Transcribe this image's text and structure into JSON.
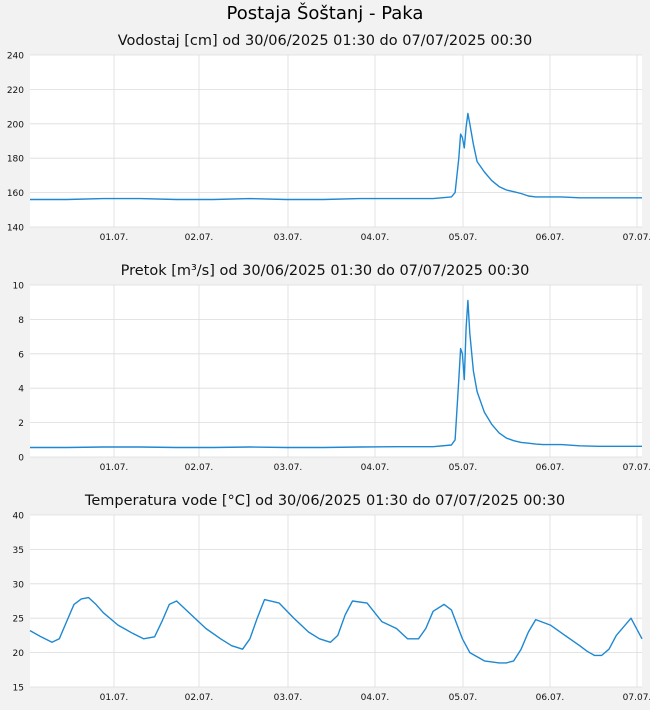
{
  "page_title": "Postaja Šoštanj - Paka",
  "colors": {
    "series": "#1e88d2",
    "background": "#f2f2f2",
    "plot": "#ffffff",
    "grid": "#dcdcdc"
  },
  "chart_data": [
    {
      "type": "line",
      "title": "Vodostaj [cm] od 30/06/2025 01:30 do 07/07/2025 00:30",
      "xlabel": "",
      "ylabel": "",
      "x_ticks": [
        "01.07.",
        "02.07.",
        "03.07.",
        "04.07.",
        "05.07.",
        "06.07.",
        "07.07."
      ],
      "y_ticks": [
        "140",
        "160",
        "180",
        "200",
        "220",
        "240"
      ],
      "xlim": [
        0,
        167
      ],
      "ylim": [
        140,
        240
      ],
      "grid": true,
      "x_unit": "hours since 30/06/2025 01:30",
      "series": [
        {
          "x": [
            0,
            10,
            20,
            30,
            40,
            50,
            60,
            70,
            80,
            90,
            100,
            110,
            115,
            116,
            117,
            117.5,
            118,
            118.5,
            119,
            119.5,
            120,
            121,
            122,
            124,
            126,
            128,
            130,
            132,
            134,
            136,
            138,
            140,
            145,
            150,
            155,
            160,
            167
          ],
          "y": [
            156,
            156,
            156.5,
            156.5,
            156,
            156,
            156.5,
            156,
            156,
            156.5,
            156.5,
            156.5,
            157.5,
            160,
            180,
            194,
            192,
            186,
            198,
            206,
            200,
            188,
            178,
            172,
            167,
            163.5,
            161.5,
            160.5,
            159.5,
            158,
            157.5,
            157.5,
            157.5,
            157,
            157,
            157,
            157
          ]
        }
      ]
    },
    {
      "type": "line",
      "title": "Pretok [m³/s] od 30/06/2025 01:30 do 07/07/2025 00:30",
      "xlabel": "",
      "ylabel": "",
      "x_ticks": [
        "01.07.",
        "02.07.",
        "03.07.",
        "04.07.",
        "05.07.",
        "06.07.",
        "07.07."
      ],
      "y_ticks": [
        "0",
        "2",
        "4",
        "6",
        "8",
        "10"
      ],
      "xlim": [
        0,
        167
      ],
      "ylim": [
        0,
        10
      ],
      "grid": true,
      "x_unit": "hours since 30/06/2025 01:30",
      "series": [
        {
          "x": [
            0,
            10,
            20,
            30,
            40,
            50,
            60,
            70,
            80,
            90,
            100,
            110,
            115,
            116,
            117,
            117.5,
            118,
            118.5,
            119,
            119.5,
            120,
            121,
            122,
            124,
            126,
            128,
            130,
            132,
            134,
            136,
            138,
            140,
            145,
            150,
            155,
            160,
            167
          ],
          "y": [
            0.55,
            0.55,
            0.58,
            0.58,
            0.55,
            0.55,
            0.58,
            0.55,
            0.55,
            0.58,
            0.6,
            0.6,
            0.7,
            1.0,
            4.5,
            6.3,
            6.0,
            4.5,
            7.5,
            9.1,
            7.2,
            5.0,
            3.8,
            2.6,
            1.9,
            1.4,
            1.1,
            0.95,
            0.85,
            0.8,
            0.75,
            0.72,
            0.72,
            0.65,
            0.62,
            0.62,
            0.62
          ]
        }
      ]
    },
    {
      "type": "line",
      "title": "Temperatura vode [°C] od 30/06/2025 01:30 do 07/07/2025 00:30",
      "xlabel": "",
      "ylabel": "",
      "x_ticks": [
        "01.07.",
        "02.07.",
        "03.07.",
        "04.07.",
        "05.07.",
        "06.07.",
        "07.07."
      ],
      "y_ticks": [
        "15",
        "20",
        "25",
        "30",
        "35",
        "40"
      ],
      "xlim": [
        0,
        167
      ],
      "ylim": [
        15,
        40
      ],
      "grid": true,
      "x_unit": "hours since 30/06/2025 01:30",
      "series": [
        {
          "x": [
            0,
            3,
            6,
            8,
            10,
            12,
            14,
            16,
            18,
            20,
            24,
            28,
            31,
            34,
            36,
            38,
            40,
            44,
            48,
            52,
            55,
            58,
            60,
            62,
            64,
            68,
            72,
            76,
            79,
            82,
            84,
            86,
            88,
            92,
            96,
            100,
            103,
            106,
            108,
            110,
            113,
            115,
            118,
            120,
            124,
            128,
            130,
            132,
            134,
            136,
            138,
            142,
            146,
            150,
            152,
            154,
            156,
            158,
            160,
            164,
            167
          ],
          "y": [
            23.2,
            22.3,
            21.5,
            22.0,
            24.5,
            27.0,
            27.8,
            28.0,
            27.0,
            25.8,
            24.0,
            22.8,
            22.0,
            22.3,
            24.5,
            27.0,
            27.5,
            25.5,
            23.5,
            22.0,
            21.0,
            20.5,
            22.0,
            25.0,
            27.7,
            27.2,
            25.0,
            23.0,
            22.0,
            21.5,
            22.5,
            25.5,
            27.5,
            27.2,
            24.5,
            23.5,
            22.0,
            22.0,
            23.5,
            26.0,
            27.0,
            26.2,
            22.0,
            20.0,
            18.8,
            18.5,
            18.5,
            18.8,
            20.5,
            23.0,
            24.8,
            24.0,
            22.5,
            21.0,
            20.2,
            19.6,
            19.6,
            20.5,
            22.5,
            25.0,
            22.0
          ]
        }
      ]
    }
  ]
}
